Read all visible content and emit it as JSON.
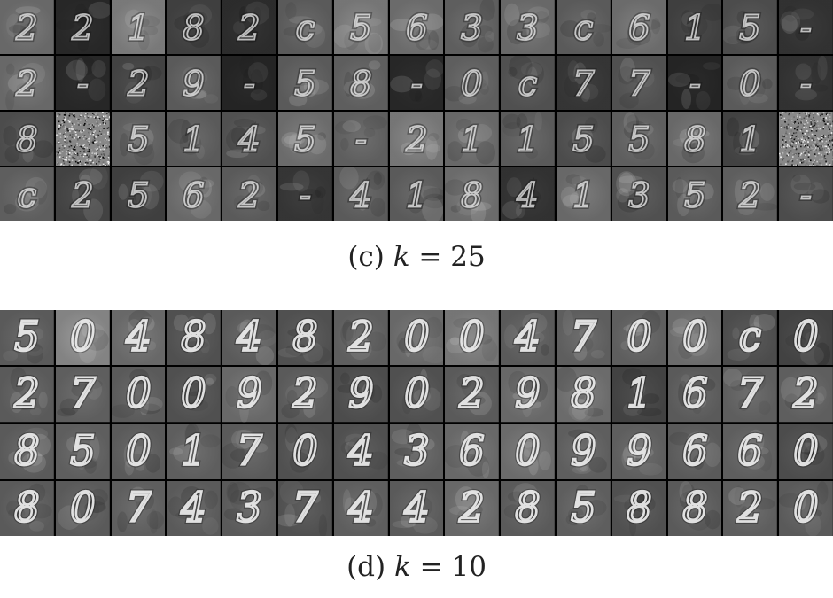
{
  "panels": [
    {
      "id": "c",
      "caption_label": "(c)",
      "caption_var": "k",
      "caption_eq": "= 25",
      "rows": 4,
      "cols": 15,
      "bg_levels": [
        [
          "#7a7a7a",
          "#2e2e2e",
          "#8e8e8e",
          "#4a4a4a",
          "#333333",
          "#6a6a6a",
          "#8a8a8a",
          "#7e7e7e",
          "#6e6e6e",
          "#7a7a7a",
          "#6a6a6a",
          "#7e7e7e",
          "#4a4a4a",
          "#5a5a5a",
          "#3a3a3a"
        ],
        [
          "#7a7a7a",
          "#2e2e2e",
          "#4e4e4e",
          "#6a6a6a",
          "#2a2a2a",
          "#6a6a6a",
          "#6e6e6e",
          "#2e2e2e",
          "#6e6e6e",
          "#5e5e5e",
          "#3e3e3e",
          "#5e5e5e",
          "#2a2a2a",
          "#6a6a6a",
          "#3a3a3a"
        ],
        [
          "#5a5a5a",
          "noise",
          "#6e6e6e",
          "#6a6a6a",
          "#5e5e5e",
          "#7e7e7e",
          "#6e6e6e",
          "#8a8a8a",
          "#7a7a7a",
          "#6a6a6a",
          "#5a5a5a",
          "#6e6e6e",
          "#7a7a7a",
          "#4e4e4e",
          "noise"
        ],
        [
          "#6e6e6e",
          "#4e4e4e",
          "#4a4a4a",
          "#7a7a7a",
          "#6a6a6a",
          "#3e3e3e",
          "#6a6a6a",
          "#6a6a6a",
          "#7e7e7e",
          "#3a3a3a",
          "#7a7a7a",
          "#5e5e5e",
          "#6a6a6a",
          "#6e6e6e",
          "#5a5a5a"
        ]
      ],
      "glyphs": [
        [
          "2",
          "2",
          "1",
          "8",
          "2",
          "c",
          "5",
          "6",
          "3",
          "3",
          "c",
          "6",
          "1",
          "5",
          "-"
        ],
        [
          "2",
          "-",
          "2",
          "9",
          "-",
          "5",
          "8",
          "-",
          "0",
          "c",
          "7",
          "7",
          "-",
          "0",
          "-"
        ],
        [
          "8",
          "",
          "5",
          "1",
          "4",
          "5",
          "-",
          "2",
          "1",
          "1",
          "5",
          "5",
          "8",
          "1",
          ""
        ],
        [
          "c",
          "2",
          "5",
          "6",
          "2",
          "-",
          "4",
          "1",
          "8",
          "4",
          "1",
          "3",
          "5",
          "2",
          "-"
        ]
      ]
    },
    {
      "id": "d",
      "caption_label": "(d)",
      "caption_var": "k",
      "caption_eq": "= 10",
      "rows": 4,
      "cols": 15,
      "bg_levels": [
        [
          "#6a6a6a",
          "#9a9a9a",
          "#7a7a7a",
          "#5e5e5e",
          "#6a6a6a",
          "#5e5e5e",
          "#6e6e6e",
          "#7a7a7a",
          "#8a8a8a",
          "#6a6a6a",
          "#6e6e6e",
          "#6e6e6e",
          "#7e7e7e",
          "#5a5a5a",
          "#4e4e4e"
        ],
        [
          "#6a6a6a",
          "#6e6e6e",
          "#6a6a6a",
          "#5e5e5e",
          "#7a7a7a",
          "#6a6a6a",
          "#5a5a5a",
          "#5e5e5e",
          "#6a6a6a",
          "#7a7a7a",
          "#7e7e7e",
          "#4e4e4e",
          "#6a6a6a",
          "#6e6e6e",
          "#6e6e6e"
        ],
        [
          "#6a6a6a",
          "#6e6e6e",
          "#6a6a6a",
          "#6e6e6e",
          "#6a6a6a",
          "#5e5e5e",
          "#5e5e5e",
          "#6e6e6e",
          "#7a7a7a",
          "#7e7e7e",
          "#6e6e6e",
          "#6e6e6e",
          "#6a6a6a",
          "#6e6e6e",
          "#5a5a5a"
        ],
        [
          "#6a6a6a",
          "#6a6a6a",
          "#6e6e6e",
          "#6a6a6a",
          "#6a6a6a",
          "#5e5e5e",
          "#6e6e6e",
          "#6a6a6a",
          "#7a7a7a",
          "#6a6a6a",
          "#6e6e6e",
          "#5e5e5e",
          "#6a6a6a",
          "#6e6e6e",
          "#6a6a6a"
        ]
      ],
      "glyphs": [
        [
          "5",
          "0",
          "4",
          "8",
          "4",
          "8",
          "2",
          "0",
          "0",
          "4",
          "7",
          "0",
          "0",
          "c",
          "0"
        ],
        [
          "2",
          "7",
          "0",
          "0",
          "9",
          "2",
          "9",
          "0",
          "2",
          "9",
          "8",
          "1",
          "6",
          "7",
          "2"
        ],
        [
          "8",
          "5",
          "0",
          "1",
          "7",
          "0",
          "4",
          "3",
          "6",
          "0",
          "9",
          "9",
          "6",
          "6",
          "0"
        ],
        [
          "8",
          "0",
          "7",
          "4",
          "3",
          "7",
          "4",
          "4",
          "2",
          "8",
          "5",
          "8",
          "8",
          "2",
          "0"
        ]
      ]
    }
  ]
}
